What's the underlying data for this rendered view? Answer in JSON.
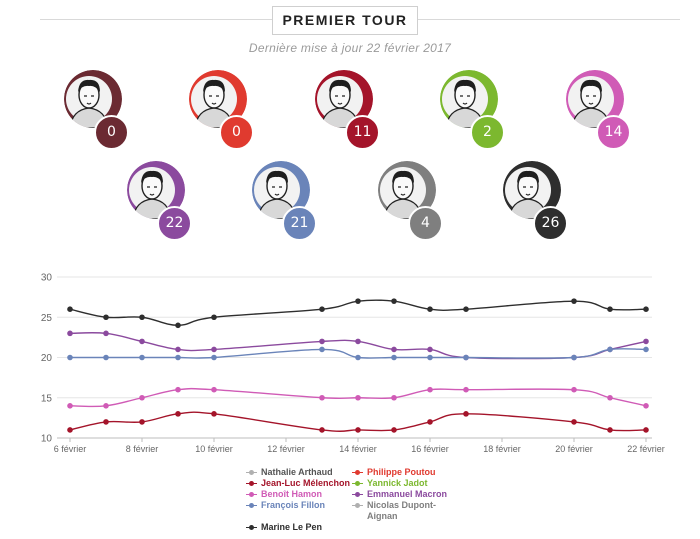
{
  "header": {
    "title": "PREMIER TOUR",
    "subtitle": "Dernière mise à jour 22 février 2017"
  },
  "candidates": [
    {
      "name": "Nathalie Arthaud",
      "score": "0",
      "color": "#6b2a32",
      "portrait": "arthaud-portrait"
    },
    {
      "name": "Philippe Poutou",
      "score": "0",
      "color": "#e03a2f",
      "portrait": "poutou-portrait"
    },
    {
      "name": "Jean-Luc Mélenchon",
      "score": "11",
      "color": "#a4142a",
      "portrait": "melenchon-portrait"
    },
    {
      "name": "Yannick Jadot",
      "score": "2",
      "color": "#7cb82f",
      "portrait": "jadot-portrait"
    },
    {
      "name": "Benoît Hamon",
      "score": "14",
      "color": "#d05bb6",
      "portrait": "hamon-portrait"
    },
    {
      "name": "Emmanuel Macron",
      "score": "22",
      "color": "#8b4a9e",
      "portrait": "macron-portrait"
    },
    {
      "name": "François Fillon",
      "score": "21",
      "color": "#6a84b9",
      "portrait": "fillon-portrait"
    },
    {
      "name": "Nicolas Dupont-Aignan",
      "score": "4",
      "color": "#7f7f7f",
      "portrait": "dupont-aignan-portrait"
    },
    {
      "name": "Marine Le Pen",
      "score": "26",
      "color": "#2e2e2e",
      "portrait": "le-pen-portrait"
    }
  ],
  "chart_data": {
    "type": "line",
    "x_unit": "day of février 2017",
    "x": [
      6,
      7,
      8,
      9,
      10,
      13,
      14,
      15,
      16,
      17,
      20,
      21,
      22
    ],
    "xticks": [
      6,
      8,
      10,
      12,
      14,
      16,
      18,
      20,
      22
    ],
    "xtick_labels": [
      "6 février",
      "8 février",
      "10 février",
      "12 février",
      "14 février",
      "16 février",
      "18 février",
      "20 février",
      "22 février"
    ],
    "xlim": [
      6,
      22
    ],
    "ylim": [
      10,
      30
    ],
    "yticks": [
      10,
      15,
      20,
      25,
      30
    ],
    "grid": "horizontal",
    "legend": "bottom-center",
    "series": [
      {
        "name": "Marine Le Pen",
        "color": "#2e2e2e",
        "values": [
          26,
          25,
          25,
          24,
          25,
          26,
          27,
          27,
          26,
          26,
          27,
          26,
          26
        ]
      },
      {
        "name": "Emmanuel Macron",
        "color": "#8b4a9e",
        "values": [
          23,
          23,
          22,
          21,
          21,
          22,
          22,
          21,
          21,
          20,
          20,
          21,
          22
        ]
      },
      {
        "name": "François Fillon",
        "color": "#6a84b9",
        "values": [
          20,
          20,
          20,
          20,
          20,
          21,
          20,
          20,
          20,
          20,
          20,
          21,
          21
        ]
      },
      {
        "name": "Benoît Hamon",
        "color": "#d05bb6",
        "values": [
          14,
          14,
          15,
          16,
          16,
          15,
          15,
          15,
          16,
          16,
          16,
          15,
          14
        ]
      },
      {
        "name": "Jean-Luc Mélenchon",
        "color": "#a4142a",
        "values": [
          11,
          12,
          12,
          13,
          13,
          11,
          11,
          11,
          12,
          13,
          12,
          11,
          11
        ]
      }
    ]
  },
  "legend": {
    "left": [
      {
        "label": "Nathalie Arthaud",
        "color": "#b0b0b0",
        "text_color": "#555555"
      },
      {
        "label": "Jean-Luc Mélenchon",
        "color": "#a4142a",
        "text_color": "#a4142a"
      },
      {
        "label": "Benoît Hamon",
        "color": "#d05bb6",
        "text_color": "#d05bb6"
      },
      {
        "label": "François Fillon",
        "color": "#6a84b9",
        "text_color": "#6a84b9"
      },
      {
        "label": "Marine Le Pen",
        "color": "#2e2e2e",
        "text_color": "#2e2e2e"
      }
    ],
    "right": [
      {
        "label": "Philippe Poutou",
        "color": "#e03a2f",
        "text_color": "#e03a2f"
      },
      {
        "label": "Yannick Jadot",
        "color": "#7cb82f",
        "text_color": "#7cb82f"
      },
      {
        "label": "Emmanuel Macron",
        "color": "#8b4a9e",
        "text_color": "#8b4a9e"
      },
      {
        "label": "Nicolas Dupont-Aignan",
        "color": "#b0b0b0",
        "text_color": "#7f7f7f"
      }
    ]
  }
}
